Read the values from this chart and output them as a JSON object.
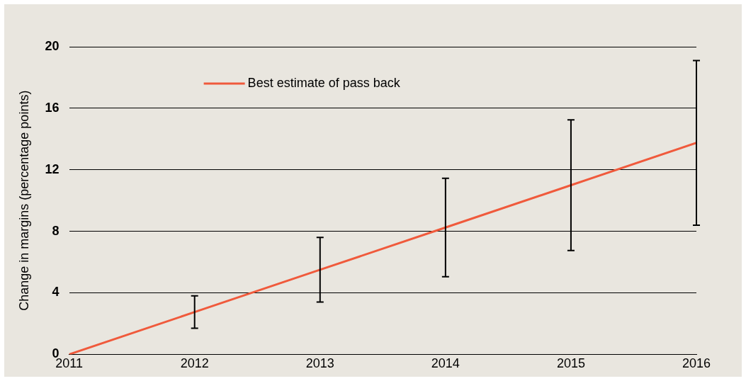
{
  "chart_data": {
    "type": "line",
    "ylabel": "Change in margins (percentage points)",
    "x": [
      2011,
      2012,
      2013,
      2014,
      2015,
      2016
    ],
    "series": [
      {
        "name": "Best estimate of pass back",
        "color": "#f05a3c",
        "values": [
          0,
          2.75,
          5.5,
          8.25,
          11,
          13.75
        ],
        "errors": [
          null,
          1.05,
          2.1,
          3.2,
          4.25,
          5.35
        ]
      }
    ],
    "xlim": [
      2011,
      2016
    ],
    "xticks": [
      2011,
      2012,
      2013,
      2014,
      2015,
      2016
    ],
    "ylim": [
      0,
      20
    ],
    "yticks": [
      0,
      4,
      8,
      12,
      16,
      20
    ],
    "grid": "y",
    "legend": "top left",
    "marker": "none",
    "line_style": "solid"
  }
}
